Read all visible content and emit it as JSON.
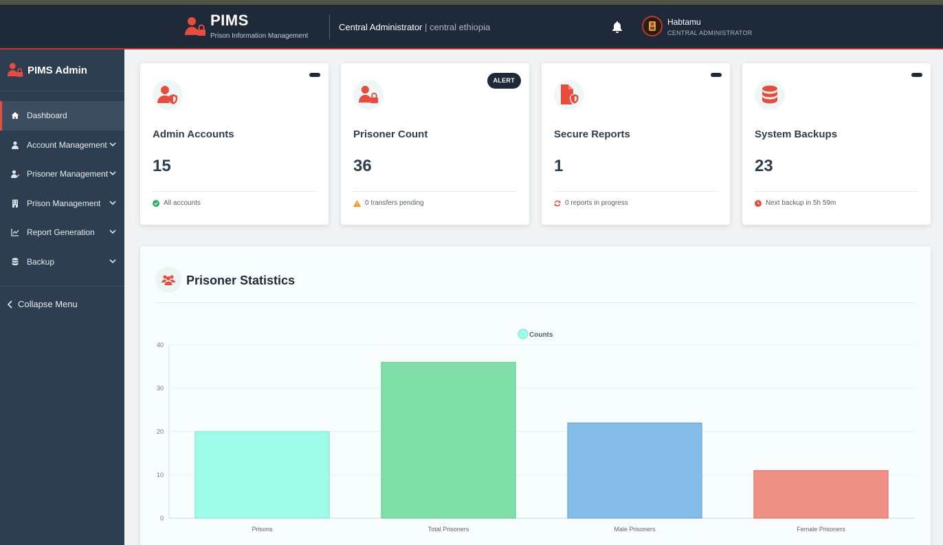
{
  "header": {
    "app_name": "PIMS",
    "app_subtitle": "Prison Information Management",
    "role": "Central Administrator",
    "separator": "|",
    "region": "central ethiopia",
    "user_name": "Habtamu",
    "user_role": "CENTRAL ADMINISTRATOR"
  },
  "sidebar": {
    "title": "PIMS Admin",
    "items": [
      {
        "label": "Dashboard",
        "icon": "home-icon",
        "active": true
      },
      {
        "label": "Account Management",
        "icon": "user-icon"
      },
      {
        "label": "Prisoner Management",
        "icon": "user-check-icon"
      },
      {
        "label": "Prison Management",
        "icon": "building-icon"
      },
      {
        "label": "Report Generation",
        "icon": "chart-line-icon"
      },
      {
        "label": "Backup",
        "icon": "database-icon"
      }
    ],
    "collapse_label": "Collapse Menu"
  },
  "cards": [
    {
      "title": "Admin Accounts",
      "value": "15",
      "footer": "All accounts",
      "icon": "user-shield-icon",
      "footer_icon": "check-circle-icon",
      "footer_color": "#27ae60",
      "badge": ""
    },
    {
      "title": "Prisoner Count",
      "value": "36",
      "footer": "0 transfers pending",
      "icon": "user-lock-icon",
      "footer_icon": "warning-icon",
      "footer_color": "#f39c12",
      "badge": "ALERT"
    },
    {
      "title": "Secure Reports",
      "value": "1",
      "footer": "0 reports in progress",
      "icon": "file-shield-icon",
      "footer_icon": "sync-icon",
      "footer_color": "#e74c3c",
      "badge": ""
    },
    {
      "title": "System Backups",
      "value": "23",
      "footer": "Next backup in 5h 59m",
      "icon": "database-icon",
      "footer_icon": "clock-icon",
      "footer_color": "#e74c3c",
      "badge": ""
    }
  ],
  "stats": {
    "title": "Prisoner Statistics"
  },
  "colors": {
    "accent": "#e74c3c",
    "header_bg": "#1e2a3a",
    "sidebar_bg": "#2c3e50"
  },
  "chart_data": {
    "type": "bar",
    "categories": [
      "Prisons",
      "Total Prisoners",
      "Male Prisoners",
      "Female Prisoners"
    ],
    "series": [
      {
        "name": "Counts",
        "values": [
          20,
          36,
          22,
          11
        ]
      }
    ],
    "bar_colors": [
      "#9dfbe7",
      "#80dfa8",
      "#84bde9",
      "#ef9186"
    ],
    "bar_borders": [
      "#7de0cb",
      "#5fc68a",
      "#62a1d6",
      "#d9675a"
    ],
    "ylim": [
      0,
      40
    ],
    "yticks": [
      0,
      10,
      20,
      30,
      40
    ],
    "grid": true,
    "legend": "top-center"
  }
}
